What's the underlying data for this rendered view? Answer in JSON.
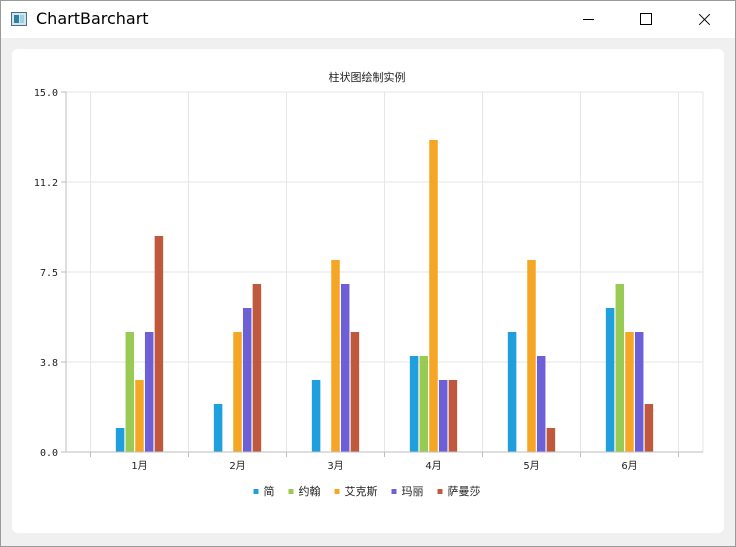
{
  "window": {
    "title": "ChartBarchart",
    "icon": "app-window-icon",
    "controls": [
      "minimize-icon",
      "maximize-icon",
      "close-icon"
    ]
  },
  "chart_data": {
    "type": "bar",
    "title": "柱状图绘制实例",
    "categories": [
      "1月",
      "2月",
      "3月",
      "4月",
      "5月",
      "6月"
    ],
    "series": [
      {
        "name": "简",
        "color": "#209fdf",
        "values": [
          1,
          2,
          3,
          4,
          5,
          6
        ]
      },
      {
        "name": "约翰",
        "color": "#99ca53",
        "values": [
          5,
          0,
          0,
          4,
          0,
          7
        ]
      },
      {
        "name": "艾克斯",
        "color": "#f6a625",
        "values": [
          3,
          5,
          8,
          13,
          8,
          5
        ]
      },
      {
        "name": "玛丽",
        "color": "#6d5fd5",
        "values": [
          5,
          6,
          7,
          3,
          4,
          5
        ]
      },
      {
        "name": "萨曼莎",
        "color": "#bf593e",
        "values": [
          9,
          7,
          5,
          3,
          1,
          2
        ]
      }
    ],
    "ylim": [
      0,
      15
    ],
    "yticks": [
      "0.0",
      "3.8",
      "7.5",
      "11.2",
      "15.0"
    ],
    "grid": true,
    "legend": "bottom"
  }
}
